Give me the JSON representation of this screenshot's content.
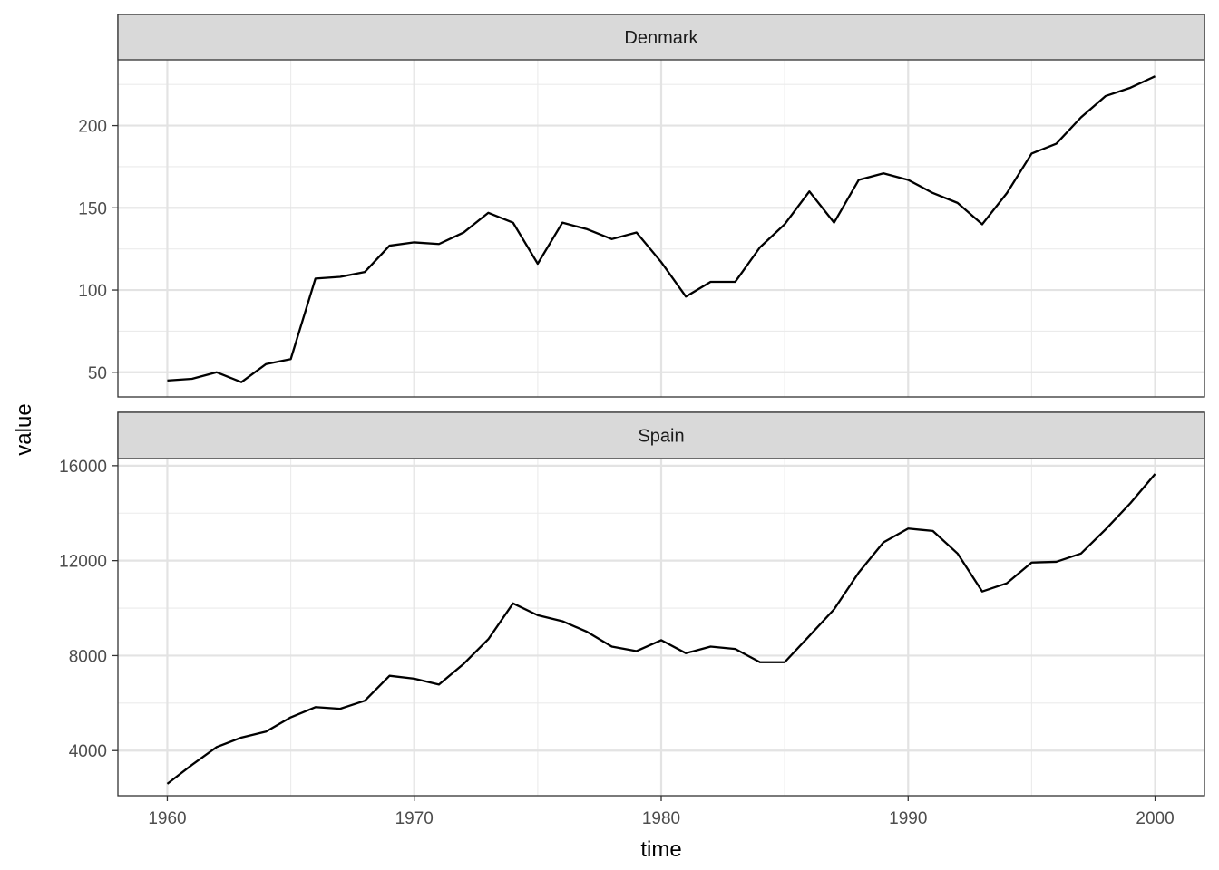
{
  "chart_data": {
    "type": "line",
    "facet_layout": "stacked-vertical",
    "xlabel": "time",
    "ylabel": "value",
    "xlim": [
      1958,
      2002
    ],
    "x_ticks": [
      1960,
      1970,
      1980,
      1990,
      2000
    ],
    "x_tick_labels": [
      "1960",
      "1970",
      "1980",
      "1990",
      "2000"
    ],
    "x_minor_ticks": [
      1965,
      1975,
      1985,
      1995
    ],
    "grid": true,
    "theme": "black-and-white",
    "line_color": "#000000",
    "panels": [
      {
        "name": "Denmark",
        "strip_label": "Denmark",
        "ylim": [
          35,
          240
        ],
        "y_ticks": [
          50,
          100,
          150,
          200
        ],
        "y_tick_labels": [
          "50",
          "100",
          "150",
          "200"
        ],
        "y_minor_ticks": [
          75,
          125,
          175,
          225
        ],
        "x": [
          1960,
          1961,
          1962,
          1963,
          1964,
          1965,
          1966,
          1967,
          1968,
          1969,
          1970,
          1971,
          1972,
          1973,
          1974,
          1975,
          1976,
          1977,
          1978,
          1979,
          1980,
          1981,
          1982,
          1983,
          1984,
          1985,
          1986,
          1987,
          1988,
          1989,
          1990,
          1991,
          1992,
          1993,
          1994,
          1995,
          1996,
          1997,
          1998,
          1999,
          2000
        ],
        "values": [
          45,
          46,
          50,
          44,
          55,
          58,
          107,
          108,
          111,
          127,
          129,
          128,
          135,
          147,
          141,
          116,
          141,
          137,
          131,
          135,
          117,
          96,
          105,
          105,
          126,
          140,
          160,
          141,
          167,
          171,
          167,
          159,
          153,
          140,
          159,
          183,
          189,
          205,
          218,
          223,
          230
        ]
      },
      {
        "name": "Spain",
        "strip_label": "Spain",
        "ylim": [
          2100,
          16300
        ],
        "y_ticks": [
          4000,
          8000,
          12000,
          16000
        ],
        "y_tick_labels": [
          "4000",
          "8000",
          "12000",
          "16000"
        ],
        "y_minor_ticks": [
          6000,
          10000,
          14000
        ],
        "x": [
          1960,
          1961,
          1962,
          1963,
          1964,
          1965,
          1966,
          1967,
          1968,
          1969,
          1970,
          1971,
          1972,
          1973,
          1974,
          1975,
          1976,
          1977,
          1978,
          1979,
          1980,
          1981,
          1982,
          1983,
          1984,
          1985,
          1986,
          1987,
          1988,
          1989,
          1990,
          1991,
          1992,
          1993,
          1994,
          1995,
          1996,
          1997,
          1998,
          1999,
          2000
        ],
        "values": [
          2600,
          3400,
          4150,
          4550,
          4800,
          5400,
          5830,
          5760,
          6100,
          7150,
          7030,
          6780,
          7650,
          8690,
          10200,
          9700,
          9450,
          9000,
          8380,
          8190,
          8650,
          8100,
          8380,
          8280,
          7720,
          7720,
          8830,
          9950,
          11500,
          12770,
          13350,
          13250,
          12300,
          10700,
          11050,
          11920,
          11950,
          12300,
          13320,
          14420,
          15650
        ]
      }
    ]
  }
}
